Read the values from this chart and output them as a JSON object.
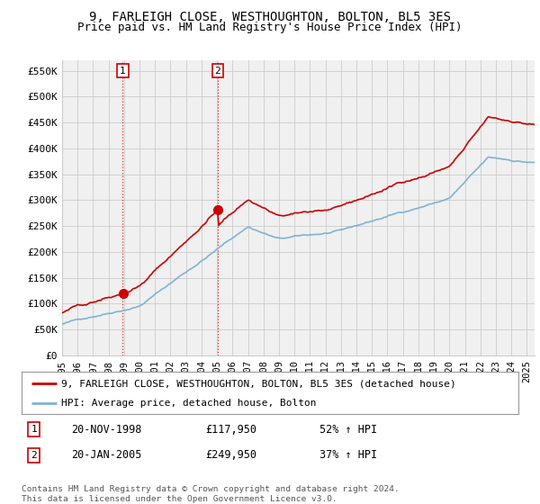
{
  "title": "9, FARLEIGH CLOSE, WESTHOUGHTON, BOLTON, BL5 3ES",
  "subtitle": "Price paid vs. HM Land Registry's House Price Index (HPI)",
  "ylabel_ticks": [
    "£0",
    "£50K",
    "£100K",
    "£150K",
    "£200K",
    "£250K",
    "£300K",
    "£350K",
    "£400K",
    "£450K",
    "£500K",
    "£550K"
  ],
  "ytick_values": [
    0,
    50000,
    100000,
    150000,
    200000,
    250000,
    300000,
    350000,
    400000,
    450000,
    500000,
    550000
  ],
  "xlim_start": 1995.0,
  "xlim_end": 2025.5,
  "ylim": [
    0,
    570000
  ],
  "sale1_x": 1998.92,
  "sale1_y": 117950,
  "sale2_x": 2005.05,
  "sale2_y": 249950,
  "line1_color": "#cc0000",
  "line2_color": "#7fb3d3",
  "vline_color": "#cc0000",
  "grid_color": "#cccccc",
  "bg_color": "#ffffff",
  "plot_bg_color": "#f0f0f0",
  "legend1_text": "9, FARLEIGH CLOSE, WESTHOUGHTON, BOLTON, BL5 3ES (detached house)",
  "legend2_text": "HPI: Average price, detached house, Bolton",
  "sale1_date": "20-NOV-1998",
  "sale1_price": "£117,950",
  "sale1_hpi": "52% ↑ HPI",
  "sale2_date": "20-JAN-2005",
  "sale2_price": "£249,950",
  "sale2_hpi": "37% ↑ HPI",
  "footnote": "Contains HM Land Registry data © Crown copyright and database right 2024.\nThis data is licensed under the Open Government Licence v3.0.",
  "title_fontsize": 10,
  "subtitle_fontsize": 9,
  "tick_fontsize": 8,
  "legend_fontsize": 8
}
